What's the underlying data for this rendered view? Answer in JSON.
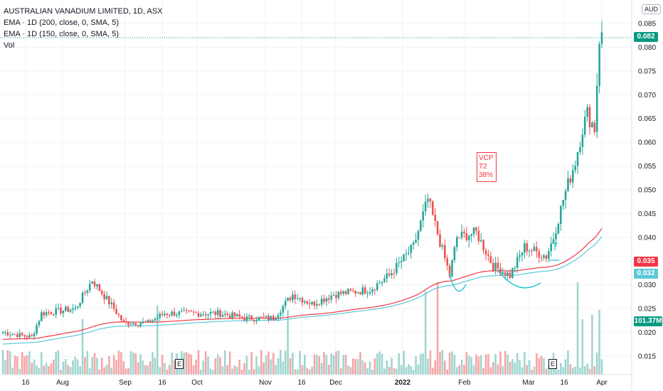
{
  "legend": {
    "title": "AUSTRALIAN VANADIUM LIMITED, 1D, ASX",
    "ema200": "EMA · 1D (200, close, 0, SMA, 5)",
    "ema150": "EMA · 1D (150, close, 0, SMA, 5)",
    "vol": "Vol"
  },
  "annotation": {
    "line1": "VCP",
    "line2": "T2",
    "line3": "38%",
    "color": "#f23645"
  },
  "currency": "AUD",
  "price_tags": {
    "last": {
      "text": "0.082",
      "color": "#089981"
    },
    "ema200": {
      "text": "0.035",
      "color": "#f23645"
    },
    "ema150": {
      "text": "0.032",
      "color": "#5dc8d8"
    },
    "volume": {
      "text": "101.37M",
      "color": "#089981"
    }
  },
  "earnings_marker": "E",
  "chart_data": {
    "type": "candlestick",
    "title": "AUSTRALIAN VANADIUM LIMITED, 1D, ASX",
    "ylim": [
      0.01,
      0.087
    ],
    "y_ticks": [
      "0.085",
      "0.080",
      "0.075",
      "0.070",
      "0.065",
      "0.060",
      "0.055",
      "0.050",
      "0.045",
      "0.040",
      "0.035",
      "0.030",
      "0.025",
      "0.020",
      "0.015"
    ],
    "x_ticks": [
      "16",
      "Aug",
      "Sep",
      "16",
      "Oct",
      "Nov",
      "16",
      "Dec",
      "2022",
      "Feb",
      "Mar",
      "16",
      "Apr"
    ],
    "colors": {
      "up": "#26a69a",
      "down": "#ef5350",
      "ema200": "#f23645",
      "ema150": "#5dc8d8"
    },
    "price_keypoints": [
      {
        "i": 0,
        "p": 0.02
      },
      {
        "i": 12,
        "p": 0.019
      },
      {
        "i": 16,
        "p": 0.024
      },
      {
        "i": 30,
        "p": 0.025
      },
      {
        "i": 37,
        "p": 0.031
      },
      {
        "i": 46,
        "p": 0.025
      },
      {
        "i": 50,
        "p": 0.022
      },
      {
        "i": 60,
        "p": 0.022
      },
      {
        "i": 67,
        "p": 0.024
      },
      {
        "i": 75,
        "p": 0.024
      },
      {
        "i": 90,
        "p": 0.024
      },
      {
        "i": 100,
        "p": 0.023
      },
      {
        "i": 112,
        "p": 0.023
      },
      {
        "i": 120,
        "p": 0.028
      },
      {
        "i": 128,
        "p": 0.026
      },
      {
        "i": 137,
        "p": 0.028
      },
      {
        "i": 152,
        "p": 0.029
      },
      {
        "i": 160,
        "p": 0.032
      },
      {
        "i": 170,
        "p": 0.038
      },
      {
        "i": 176,
        "p": 0.048
      },
      {
        "i": 181,
        "p": 0.039
      },
      {
        "i": 185,
        "p": 0.032
      },
      {
        "i": 188,
        "p": 0.04
      },
      {
        "i": 196,
        "p": 0.041
      },
      {
        "i": 203,
        "p": 0.034
      },
      {
        "i": 210,
        "p": 0.032
      },
      {
        "i": 216,
        "p": 0.038
      },
      {
        "i": 225,
        "p": 0.036
      },
      {
        "i": 228,
        "p": 0.04
      },
      {
        "i": 232,
        "p": 0.048
      },
      {
        "i": 237,
        "p": 0.056
      },
      {
        "i": 240,
        "p": 0.063
      },
      {
        "i": 242,
        "p": 0.066
      },
      {
        "i": 245,
        "p": 0.063
      },
      {
        "i": 247,
        "p": 0.082
      }
    ],
    "volume_spikes": [
      {
        "i": 33,
        "v": 0.6
      },
      {
        "i": 64,
        "v": 0.75
      },
      {
        "i": 118,
        "v": 0.7
      },
      {
        "i": 175,
        "v": 0.9
      },
      {
        "i": 180,
        "v": 1.0
      },
      {
        "i": 238,
        "v": 1.0
      },
      {
        "i": 240,
        "v": 0.6
      },
      {
        "i": 244,
        "v": 0.65
      },
      {
        "i": 247,
        "v": 0.7
      }
    ]
  }
}
